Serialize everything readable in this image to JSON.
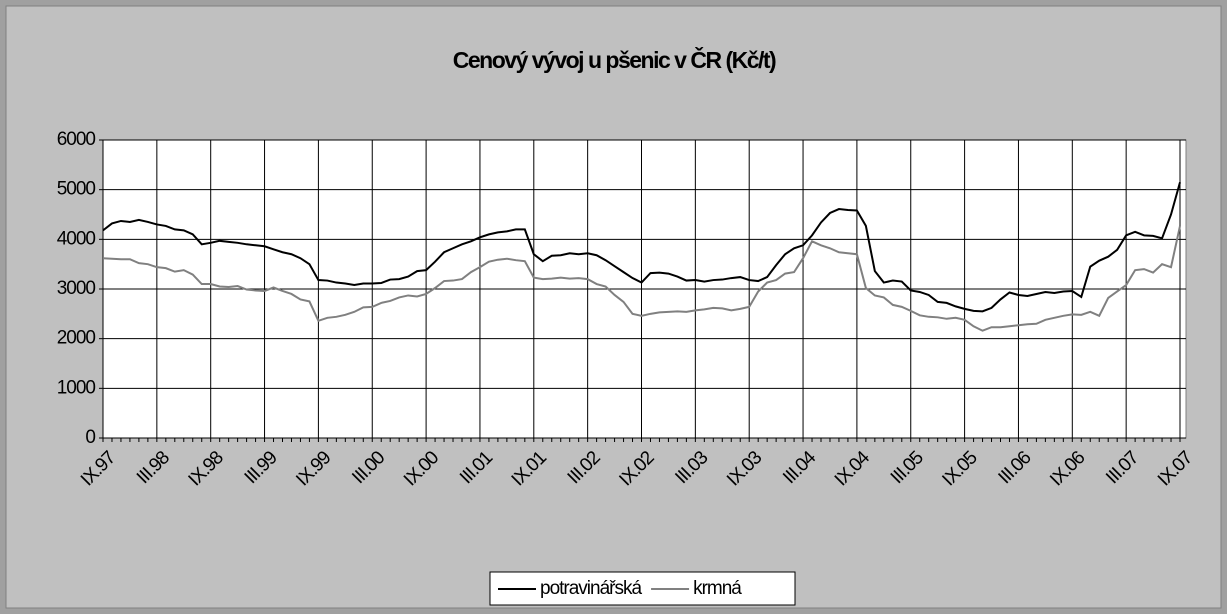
{
  "chart_data": {
    "type": "line",
    "title": "Cenový vývoj u pšenic v ČR (Kč/t)",
    "categories": [
      "IX.97",
      null,
      null,
      null,
      null,
      null,
      "III.98",
      null,
      null,
      null,
      null,
      null,
      "IX.98",
      null,
      null,
      null,
      null,
      null,
      "III.99",
      null,
      null,
      null,
      null,
      null,
      "IX.99",
      null,
      null,
      null,
      null,
      null,
      "III.00",
      null,
      null,
      null,
      null,
      null,
      "IX.00",
      null,
      null,
      null,
      null,
      null,
      "III.01",
      null,
      null,
      null,
      null,
      null,
      "IX.01",
      null,
      null,
      null,
      null,
      null,
      "III.02",
      null,
      null,
      null,
      null,
      null,
      "IX.02",
      null,
      null,
      null,
      null,
      null,
      "III.03",
      null,
      null,
      null,
      null,
      null,
      "IX.03",
      null,
      null,
      null,
      null,
      null,
      "III.04",
      null,
      null,
      null,
      null,
      null,
      "IX.04",
      null,
      null,
      null,
      null,
      null,
      "III.05",
      null,
      null,
      null,
      null,
      null,
      "IX.05",
      null,
      null,
      null,
      null,
      null,
      "III.06",
      null,
      null,
      null,
      null,
      null,
      "IX.06",
      null,
      null,
      null,
      null,
      null,
      "III.07",
      null,
      null,
      null,
      null,
      null,
      "IX.07"
    ],
    "series": [
      {
        "name": "potravinářská",
        "color": "#000000",
        "values": [
          4180,
          4320,
          4370,
          4350,
          4390,
          4350,
          4300,
          4270,
          4200,
          4180,
          4100,
          3900,
          3930,
          3970,
          3950,
          3930,
          3900,
          3880,
          3860,
          3800,
          3740,
          3700,
          3620,
          3500,
          3180,
          3170,
          3130,
          3110,
          3080,
          3110,
          3110,
          3120,
          3190,
          3200,
          3250,
          3360,
          3380,
          3550,
          3740,
          3820,
          3900,
          3960,
          4040,
          4100,
          4140,
          4160,
          4200,
          4200,
          3700,
          3560,
          3670,
          3680,
          3720,
          3700,
          3720,
          3680,
          3580,
          3460,
          3340,
          3220,
          3130,
          3320,
          3330,
          3310,
          3250,
          3170,
          3180,
          3150,
          3180,
          3190,
          3220,
          3240,
          3180,
          3160,
          3240,
          3480,
          3700,
          3820,
          3880,
          4080,
          4340,
          4530,
          4610,
          4590,
          4580,
          4270,
          3360,
          3130,
          3170,
          3150,
          2970,
          2940,
          2880,
          2740,
          2720,
          2650,
          2600,
          2560,
          2550,
          2620,
          2790,
          2930,
          2880,
          2860,
          2900,
          2940,
          2920,
          2950,
          2960,
          2840,
          3450,
          3570,
          3650,
          3790,
          4080,
          4150,
          4080,
          4070,
          4020,
          4500,
          5150
        ]
      },
      {
        "name": "krmná",
        "color": "#808080",
        "values": [
          3620,
          3610,
          3600,
          3600,
          3520,
          3500,
          3440,
          3420,
          3350,
          3380,
          3290,
          3100,
          3100,
          3050,
          3040,
          3060,
          2990,
          2970,
          2960,
          3030,
          2960,
          2900,
          2790,
          2750,
          2360,
          2420,
          2440,
          2480,
          2540,
          2630,
          2640,
          2720,
          2760,
          2830,
          2870,
          2850,
          2900,
          3020,
          3160,
          3170,
          3200,
          3340,
          3440,
          3550,
          3590,
          3610,
          3580,
          3560,
          3230,
          3200,
          3210,
          3230,
          3210,
          3220,
          3200,
          3100,
          3050,
          2880,
          2740,
          2500,
          2460,
          2500,
          2530,
          2540,
          2550,
          2540,
          2570,
          2590,
          2620,
          2610,
          2570,
          2600,
          2640,
          2950,
          3130,
          3180,
          3310,
          3340,
          3620,
          3960,
          3880,
          3820,
          3740,
          3720,
          3700,
          3020,
          2870,
          2830,
          2680,
          2640,
          2560,
          2470,
          2440,
          2430,
          2400,
          2420,
          2380,
          2250,
          2160,
          2230,
          2230,
          2250,
          2270,
          2290,
          2300,
          2380,
          2420,
          2460,
          2490,
          2480,
          2540,
          2460,
          2820,
          2950,
          3080,
          3380,
          3400,
          3330,
          3500,
          3440,
          4270
        ]
      }
    ],
    "ylim": [
      0,
      6000
    ],
    "yticks": [
      0,
      1000,
      2000,
      3000,
      4000,
      5000,
      6000
    ],
    "grid": true,
    "legend": "bottom"
  }
}
